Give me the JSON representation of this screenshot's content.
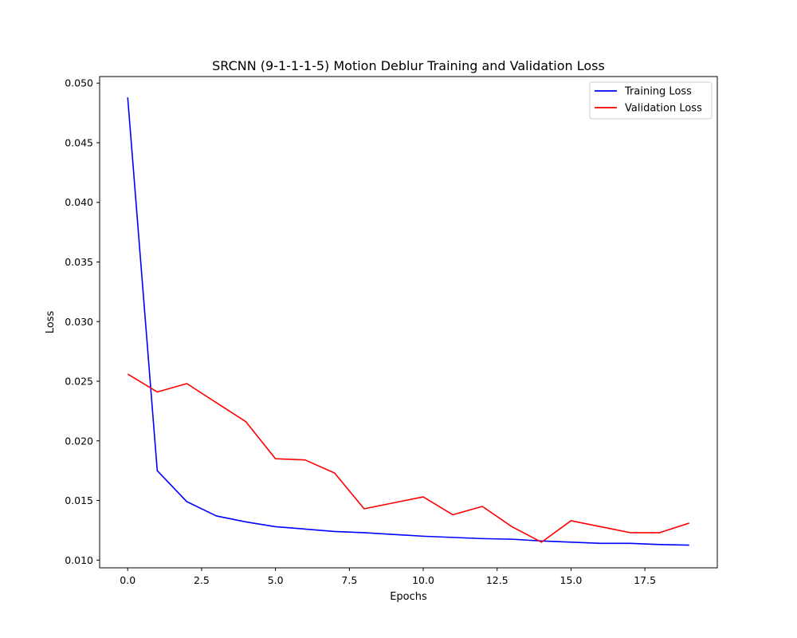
{
  "chart_data": {
    "type": "line",
    "title": "SRCNN (9-1-1-1-5) Motion Deblur Training and Validation Loss",
    "xlabel": "Epochs",
    "ylabel": "Loss",
    "xlim": [
      -0.95,
      19.95
    ],
    "ylim": [
      0.00935,
      0.05055
    ],
    "xticks": [
      0.0,
      2.5,
      5.0,
      7.5,
      10.0,
      12.5,
      15.0,
      17.5
    ],
    "xtick_labels": [
      "0.0",
      "2.5",
      "5.0",
      "7.5",
      "10.0",
      "12.5",
      "15.0",
      "17.5"
    ],
    "yticks": [
      0.01,
      0.015,
      0.02,
      0.025,
      0.03,
      0.035,
      0.04,
      0.045,
      0.05
    ],
    "ytick_labels": [
      "0.010",
      "0.015",
      "0.020",
      "0.025",
      "0.030",
      "0.035",
      "0.040",
      "0.045",
      "0.050"
    ],
    "grid": false,
    "legend_position": "top-right",
    "x": [
      0,
      1,
      2,
      3,
      4,
      5,
      6,
      7,
      8,
      9,
      10,
      11,
      12,
      13,
      14,
      15,
      16,
      17,
      18,
      19
    ],
    "series": [
      {
        "name": "Training Loss",
        "color": "#0000ff",
        "values": [
          0.0488,
          0.0175,
          0.0149,
          0.0137,
          0.0132,
          0.0128,
          0.0126,
          0.0124,
          0.0123,
          0.01215,
          0.012,
          0.0119,
          0.0118,
          0.01175,
          0.0116,
          0.0115,
          0.0114,
          0.0114,
          0.0113,
          0.01125
        ]
      },
      {
        "name": "Validation Loss",
        "color": "#ff0000",
        "values": [
          0.0256,
          0.0241,
          0.0248,
          0.0232,
          0.0216,
          0.0185,
          0.0184,
          0.0173,
          0.0143,
          0.0148,
          0.0153,
          0.0138,
          0.0145,
          0.0128,
          0.0115,
          0.0133,
          0.0128,
          0.0123,
          0.0123,
          0.0131
        ]
      }
    ]
  }
}
